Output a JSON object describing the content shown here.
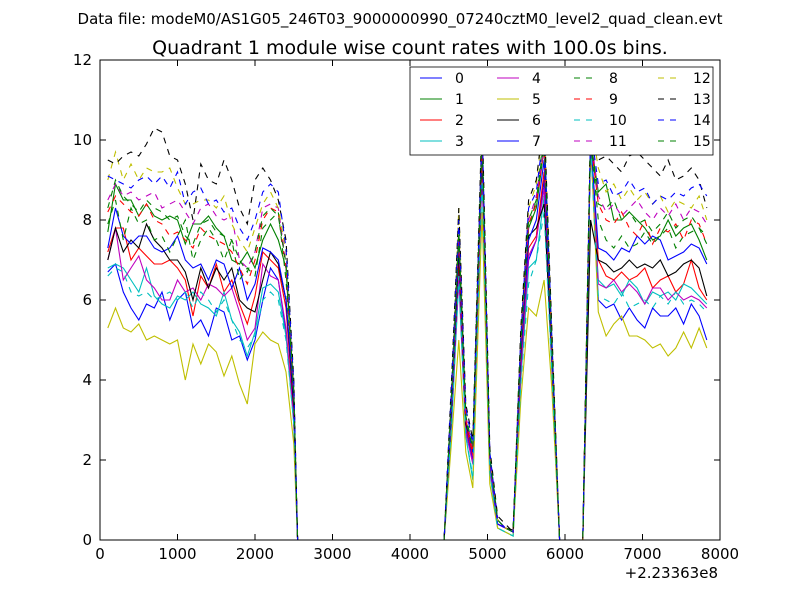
{
  "chart_data": {
    "type": "line",
    "suptitle": "Data file: modeM0/AS1G05_246T03_9000000990_07240cztM0_level2_quad_clean.evt",
    "title": "Quadrant 1 module wise count rates with 100.0s bins.",
    "xlabel": "",
    "ylabel": "",
    "x_offset_label": "+2.23363e8",
    "xlim": [
      0,
      8000
    ],
    "ylim": [
      0,
      12
    ],
    "xticks": [
      0,
      1000,
      2000,
      3000,
      4000,
      5000,
      6000,
      7000,
      8000
    ],
    "yticks": [
      0,
      2,
      4,
      6,
      8,
      10,
      12
    ],
    "grid": false,
    "legend": {
      "placement": "top-right",
      "columns": 4
    },
    "x": [
      100,
      200,
      300,
      400,
      500,
      600,
      700,
      800,
      900,
      1000,
      1100,
      1200,
      1300,
      1400,
      1500,
      1600,
      1700,
      1800,
      1900,
      2000,
      2100,
      2200,
      2300,
      2400,
      2500,
      2550,
      4440,
      4540,
      4630,
      4720,
      4810,
      4930,
      5030,
      5130,
      5230,
      5330,
      5430,
      5530,
      5630,
      5730,
      5830,
      5930,
      6230,
      6330,
      6430,
      6530,
      6630,
      6730,
      6830,
      6930,
      7030,
      7130,
      7230,
      7330,
      7430,
      7530,
      7630,
      7730,
      7830
    ],
    "series": [
      {
        "name": "0",
        "color": "#0000ff",
        "dashed": false,
        "values": [
          6.7,
          6.9,
          6.2,
          5.8,
          5.5,
          5.9,
          5.8,
          6.2,
          5.5,
          6.0,
          6.2,
          5.3,
          5.5,
          5.1,
          5.8,
          5.7,
          5.0,
          5.1,
          4.5,
          5.0,
          6.0,
          6.8,
          6.5,
          5.2,
          3.0,
          0,
          0,
          3.2,
          6.8,
          2.8,
          2.0,
          9.5,
          1.9,
          0.4,
          0.3,
          0.2,
          4.3,
          7.0,
          7.5,
          9.0,
          4.5,
          0,
          0,
          10.0,
          6.0,
          5.8,
          5.9,
          5.5,
          5.8,
          5.5,
          5.3,
          5.8,
          5.6,
          5.6,
          5.8,
          5.4,
          5.9,
          5.6,
          5.0
        ]
      },
      {
        "name": "1",
        "color": "#008000",
        "dashed": false,
        "values": [
          7.7,
          8.9,
          8.5,
          8.5,
          8.1,
          8.4,
          8.1,
          8.0,
          8.1,
          8.0,
          7.4,
          7.9,
          7.9,
          8.1,
          7.8,
          7.6,
          7.0,
          6.9,
          7.2,
          6.8,
          7.5,
          7.9,
          7.5,
          6.8,
          3.5,
          0,
          0,
          3.6,
          7.3,
          3.0,
          2.2,
          9.8,
          2.0,
          0.5,
          0.3,
          0.2,
          4.8,
          7.8,
          8.3,
          9.8,
          4.8,
          0,
          0,
          10.0,
          8.7,
          8.9,
          8.0,
          8.0,
          8.2,
          8.0,
          7.8,
          7.5,
          7.6,
          8.0,
          7.6,
          7.8,
          7.9,
          7.5,
          7.0
        ]
      },
      {
        "name": "2",
        "color": "#ff0000",
        "dashed": false,
        "values": [
          7.2,
          7.8,
          7.8,
          7.0,
          7.3,
          7.1,
          6.9,
          6.9,
          7.0,
          6.8,
          6.5,
          5.6,
          6.6,
          6.3,
          6.9,
          6.2,
          6.5,
          5.9,
          5.4,
          6.1,
          7.2,
          7.0,
          6.8,
          5.8,
          3.2,
          0,
          0,
          3.4,
          7.0,
          2.9,
          2.1,
          9.6,
          1.9,
          0.4,
          0.3,
          0.2,
          4.5,
          7.3,
          7.6,
          9.2,
          4.6,
          0,
          0,
          10.0,
          7.0,
          6.6,
          6.5,
          6.7,
          6.5,
          6.6,
          6.8,
          6.3,
          6.5,
          6.6,
          6.2,
          6.4,
          7.0,
          6.3,
          6.0
        ]
      },
      {
        "name": "3",
        "color": "#00bfbf",
        "dashed": false,
        "values": [
          6.8,
          6.9,
          6.8,
          6.5,
          6.2,
          6.8,
          6.1,
          5.9,
          5.8,
          6.1,
          6.0,
          6.2,
          5.9,
          5.8,
          5.6,
          6.2,
          5.5,
          5.2,
          4.6,
          5.2,
          6.3,
          6.4,
          6.2,
          5.1,
          2.9,
          0,
          0,
          3.0,
          6.5,
          2.6,
          1.5,
          9.2,
          1.7,
          0.3,
          0.2,
          0.1,
          4.0,
          6.8,
          7.0,
          8.6,
          4.3,
          0,
          0,
          9.8,
          6.5,
          6.3,
          6.4,
          6.1,
          6.5,
          6.3,
          5.9,
          6.2,
          6.1,
          6.2,
          6.0,
          6.4,
          6.3,
          6.1,
          5.9
        ]
      },
      {
        "name": "4",
        "color": "#bf00bf",
        "dashed": false,
        "values": [
          7.0,
          7.8,
          6.5,
          6.8,
          7.1,
          6.5,
          6.3,
          6.0,
          6.0,
          6.5,
          6.2,
          6.3,
          6.0,
          6.4,
          6.3,
          6.1,
          6.3,
          5.7,
          5.0,
          5.3,
          6.9,
          6.6,
          6.5,
          5.3,
          3.0,
          0,
          0,
          3.2,
          6.6,
          2.7,
          1.9,
          9.3,
          1.8,
          0.4,
          0.3,
          0.2,
          4.2,
          7.1,
          7.5,
          8.8,
          4.4,
          0,
          0,
          10.0,
          6.4,
          6.3,
          6.5,
          6.2,
          6.4,
          6.2,
          5.9,
          6.3,
          6.3,
          6.0,
          6.2,
          6.0,
          6.1,
          6.0,
          5.8
        ]
      },
      {
        "name": "5",
        "color": "#bfbf00",
        "dashed": false,
        "values": [
          5.3,
          5.8,
          5.3,
          5.2,
          5.4,
          5.0,
          5.1,
          5.0,
          4.9,
          5.0,
          4.0,
          4.9,
          4.4,
          4.9,
          4.7,
          4.1,
          4.6,
          3.9,
          3.4,
          4.9,
          5.2,
          5.0,
          4.9,
          4.2,
          2.4,
          0,
          0,
          2.6,
          5.0,
          2.2,
          1.3,
          8.2,
          1.4,
          0.3,
          0.2,
          0.1,
          3.5,
          5.8,
          5.6,
          6.5,
          3.8,
          0,
          0,
          10.0,
          5.7,
          5.1,
          5.4,
          5.6,
          5.1,
          5.1,
          5.0,
          4.8,
          4.9,
          4.6,
          4.8,
          5.2,
          4.8,
          5.3,
          4.8
        ]
      },
      {
        "name": "6",
        "color": "#000000",
        "dashed": false,
        "values": [
          7.0,
          7.8,
          7.2,
          7.5,
          7.3,
          7.9,
          7.5,
          7.3,
          7.0,
          7.0,
          6.7,
          6.0,
          6.8,
          6.3,
          6.8,
          6.5,
          6.8,
          6.0,
          5.8,
          5.7,
          6.5,
          7.2,
          6.9,
          6.0,
          3.3,
          0,
          0,
          3.4,
          7.2,
          2.9,
          2.3,
          9.7,
          2.0,
          0.5,
          0.3,
          0.25,
          4.6,
          7.6,
          7.8,
          8.4,
          4.6,
          0,
          0,
          8.0,
          7.0,
          6.9,
          6.7,
          6.8,
          7.0,
          6.8,
          6.9,
          6.8,
          7.0,
          6.6,
          6.7,
          6.9,
          7.0,
          6.8,
          6.1
        ]
      },
      {
        "name": "7",
        "color": "#0000ff",
        "dashed": false,
        "values": [
          7.3,
          8.3,
          7.6,
          7.4,
          7.6,
          7.6,
          7.3,
          7.2,
          7.3,
          7.6,
          7.0,
          6.8,
          6.9,
          6.5,
          7.0,
          6.9,
          6.3,
          6.8,
          6.0,
          6.4,
          7.3,
          7.2,
          7.0,
          6.0,
          3.5,
          0,
          0,
          3.5,
          7.5,
          3.0,
          2.2,
          10.0,
          2.0,
          0.4,
          0.3,
          0.2,
          4.7,
          7.5,
          8.0,
          9.5,
          4.7,
          0,
          0,
          10.0,
          7.3,
          7.2,
          7.0,
          7.3,
          7.2,
          7.6,
          7.4,
          7.6,
          7.5,
          7.0,
          7.1,
          7.2,
          7.4,
          7.3,
          6.9
        ]
      },
      {
        "name": "8",
        "color": "#008000",
        "dashed": true,
        "values": [
          7.9,
          8.5,
          7.5,
          8.3,
          7.9,
          8.0,
          7.5,
          7.6,
          7.2,
          7.6,
          8.0,
          7.0,
          7.5,
          7.8,
          7.5,
          7.0,
          7.5,
          6.5,
          6.8,
          6.6,
          7.8,
          8.0,
          8.2,
          6.5,
          3.6,
          0,
          0,
          3.7,
          7.5,
          3.0,
          2.3,
          10.0,
          2.1,
          0.5,
          0.3,
          0.2,
          4.8,
          7.8,
          8.5,
          10.2,
          4.8,
          0,
          0,
          10.0,
          8.0,
          7.5,
          7.3,
          7.6,
          7.3,
          7.4,
          7.7,
          7.4,
          7.6,
          7.8,
          7.3,
          7.6,
          7.7,
          7.8,
          7.6
        ]
      },
      {
        "name": "9",
        "color": "#ff0000",
        "dashed": true,
        "values": [
          8.2,
          8.6,
          8.4,
          8.2,
          8.1,
          8.4,
          8.0,
          7.9,
          7.6,
          7.7,
          7.5,
          7.3,
          7.8,
          7.6,
          7.5,
          7.4,
          7.2,
          6.8,
          6.4,
          7.0,
          8.0,
          8.3,
          8.2,
          6.8,
          3.6,
          0,
          0,
          3.7,
          7.6,
          3.0,
          2.2,
          10.0,
          2.1,
          0.5,
          0.3,
          0.2,
          4.9,
          7.9,
          8.4,
          9.8,
          4.9,
          0,
          0,
          10.0,
          8.4,
          8.0,
          7.9,
          8.2,
          7.8,
          7.6,
          8.0,
          7.4,
          7.8,
          7.7,
          7.9,
          7.5,
          8.0,
          7.9,
          7.4
        ]
      },
      {
        "name": "10",
        "color": "#00bfbf",
        "dashed": true,
        "values": [
          6.6,
          6.8,
          6.7,
          6.2,
          6.1,
          6.2,
          6.0,
          6.1,
          6.2,
          6.0,
          6.2,
          5.8,
          6.2,
          6.0,
          5.7,
          6.0,
          5.5,
          5.0,
          4.8,
          5.1,
          6.0,
          6.2,
          6.0,
          5.0,
          2.9,
          0,
          0,
          3.0,
          6.6,
          2.6,
          1.6,
          9.0,
          1.7,
          0.3,
          0.2,
          0.1,
          3.9,
          6.4,
          7.0,
          8.2,
          4.2,
          0,
          0,
          9.9,
          6.1,
          6.0,
          5.9,
          6.2,
          5.8,
          5.9,
          6.0,
          5.8,
          6.1,
          5.9,
          6.2,
          5.9,
          6.0,
          5.9,
          5.7
        ]
      },
      {
        "name": "11",
        "color": "#bf00bf",
        "dashed": true,
        "values": [
          8.5,
          8.9,
          8.6,
          8.7,
          8.5,
          8.6,
          8.7,
          8.3,
          8.4,
          8.5,
          8.2,
          7.9,
          8.3,
          8.4,
          8.1,
          8.0,
          8.1,
          7.0,
          6.8,
          7.2,
          8.3,
          8.4,
          8.3,
          6.9,
          3.7,
          0,
          0,
          3.8,
          7.8,
          3.1,
          2.3,
          10.2,
          2.1,
          0.5,
          0.3,
          0.2,
          5.0,
          8.0,
          8.6,
          9.8,
          5.0,
          0,
          0,
          10.2,
          8.6,
          8.2,
          8.4,
          8.1,
          8.3,
          8.5,
          8.2,
          8.0,
          8.3,
          8.1,
          8.4,
          8.0,
          8.3,
          8.2,
          7.9
        ]
      },
      {
        "name": "12",
        "color": "#bfbf00",
        "dashed": true,
        "values": [
          9.0,
          9.7,
          9.0,
          9.4,
          9.0,
          9.3,
          9.2,
          9.2,
          9.3,
          8.8,
          8.4,
          8.4,
          8.5,
          8.5,
          8.3,
          8.6,
          7.9,
          7.5,
          7.2,
          7.8,
          8.4,
          8.7,
          8.3,
          7.2,
          3.9,
          0,
          0,
          4.0,
          8.3,
          3.3,
          2.4,
          10.5,
          2.2,
          0.5,
          0.3,
          0.2,
          5.2,
          8.3,
          8.9,
          10.6,
          5.2,
          0,
          0,
          10.5,
          9.3,
          8.7,
          8.9,
          8.5,
          8.8,
          8.5,
          8.7,
          8.4,
          8.6,
          8.2,
          8.5,
          8.4,
          8.3,
          8.6,
          8.0
        ]
      },
      {
        "name": "13",
        "color": "#000000",
        "dashed": true,
        "values": [
          9.5,
          9.4,
          9.6,
          9.7,
          9.6,
          9.9,
          10.3,
          10.2,
          9.6,
          9.5,
          8.9,
          8.0,
          9.4,
          9.0,
          8.9,
          9.5,
          9.0,
          8.3,
          7.9,
          9.0,
          9.3,
          9.0,
          8.5,
          7.5,
          4.0,
          0,
          0,
          4.2,
          8.3,
          3.4,
          2.5,
          10.7,
          2.3,
          0.6,
          0.4,
          0.2,
          5.3,
          8.5,
          9.0,
          10.6,
          5.3,
          0,
          0,
          10.6,
          9.5,
          9.6,
          9.4,
          9.2,
          9.6,
          9.7,
          9.5,
          9.3,
          9.1,
          9.5,
          9.0,
          9.1,
          9.3,
          9.0,
          8.3
        ]
      },
      {
        "name": "14",
        "color": "#0000ff",
        "dashed": true,
        "values": [
          9.1,
          9.0,
          8.9,
          8.8,
          9.0,
          9.1,
          8.9,
          9.1,
          8.8,
          9.2,
          8.4,
          8.7,
          8.8,
          8.4,
          8.5,
          8.2,
          8.3,
          7.8,
          7.5,
          8.0,
          8.7,
          8.9,
          8.7,
          7.3,
          3.9,
          0,
          0,
          4.0,
          8.0,
          3.3,
          2.4,
          10.4,
          2.2,
          0.5,
          0.3,
          0.2,
          5.1,
          8.3,
          8.7,
          10.3,
          5.1,
          0,
          0,
          10.3,
          8.9,
          9.0,
          8.6,
          8.7,
          9.0,
          8.7,
          8.8,
          8.4,
          8.6,
          8.5,
          8.7,
          8.6,
          8.8,
          8.9,
          8.6
        ]
      },
      {
        "name": "15",
        "color": "#008000",
        "dashed": true,
        "values": [
          8.3,
          9.0,
          8.6,
          8.4,
          8.2,
          8.5,
          8.3,
          8.2,
          8.0,
          8.1,
          7.6,
          7.4,
          7.9,
          8.0,
          7.7,
          7.6,
          7.5,
          7.0,
          6.7,
          7.2,
          8.1,
          8.3,
          8.1,
          6.9,
          3.7,
          0,
          0,
          3.8,
          7.7,
          3.1,
          2.3,
          10.1,
          2.1,
          0.5,
          0.3,
          0.2,
          4.9,
          8.0,
          8.5,
          10.0,
          4.9,
          0,
          0,
          10.1,
          8.4,
          8.3,
          8.5,
          8.0,
          8.2,
          7.9,
          8.0,
          7.7,
          7.9,
          8.2,
          7.8,
          8.0,
          8.1,
          7.8,
          7.4
        ]
      }
    ]
  }
}
